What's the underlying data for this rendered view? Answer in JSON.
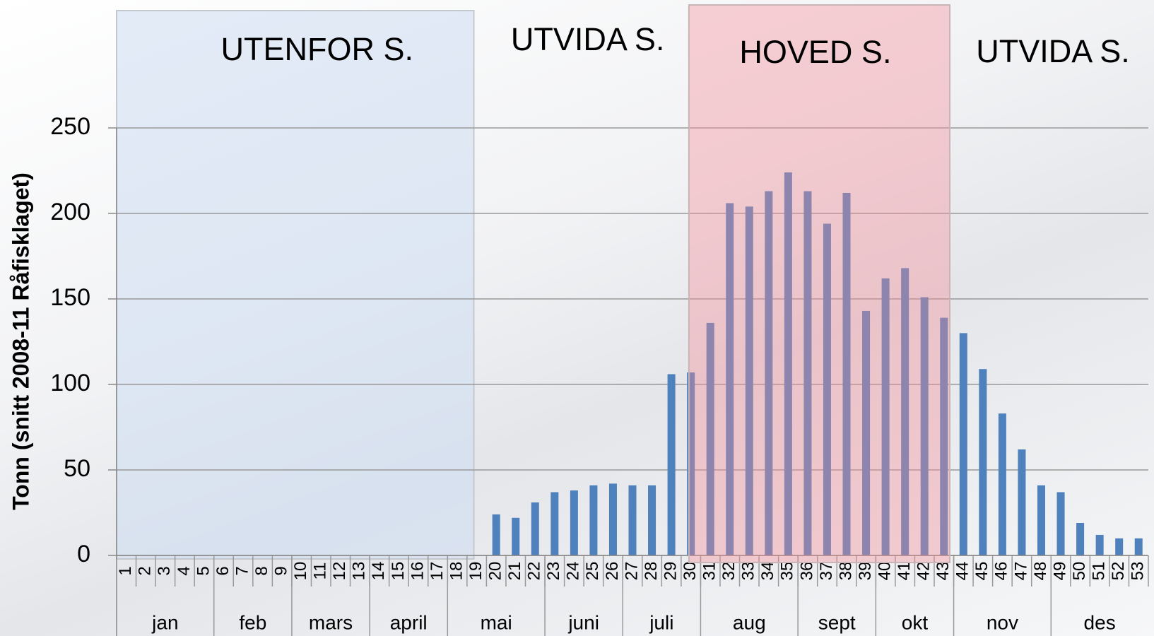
{
  "chart_data": {
    "type": "bar",
    "y_label": "Tonn (snitt 2008-11 Råfisklaget)",
    "categories": [
      "1",
      "2",
      "3",
      "4",
      "5",
      "6",
      "7",
      "8",
      "9",
      "10",
      "11",
      "12",
      "13",
      "14",
      "15",
      "16",
      "17",
      "18",
      "19",
      "20",
      "21",
      "22",
      "23",
      "24",
      "25",
      "26",
      "27",
      "28",
      "29",
      "30",
      "31",
      "32",
      "33",
      "34",
      "35",
      "36",
      "37",
      "38",
      "39",
      "40",
      "41",
      "42",
      "43",
      "44",
      "45",
      "46",
      "47",
      "48",
      "49",
      "50",
      "51",
      "52",
      "53"
    ],
    "values": [
      0,
      0,
      0,
      0,
      0,
      0,
      0,
      0,
      0,
      0,
      0,
      0,
      0,
      0,
      0,
      0,
      0,
      0,
      0,
      24,
      22,
      31,
      37,
      38,
      41,
      42,
      41,
      41,
      106,
      107,
      136,
      206,
      204,
      213,
      224,
      213,
      194,
      212,
      143,
      162,
      168,
      151,
      139,
      130,
      109,
      83,
      62,
      41,
      37,
      19,
      12,
      10,
      10
    ],
    "color": "#4f81bd",
    "month_labels": [
      "jan",
      "feb",
      "mars",
      "april",
      "mai",
      "juni",
      "juli",
      "aug",
      "sept",
      "okt",
      "nov",
      "des"
    ],
    "annotations": [
      "UTENFOR S.",
      "UTVIDA S.",
      "HOVED S.",
      "UTVIDA S."
    ],
    "ylim": [
      0,
      250
    ],
    "yticks": [
      0,
      50,
      100,
      150,
      200,
      250
    ],
    "grid": true
  }
}
